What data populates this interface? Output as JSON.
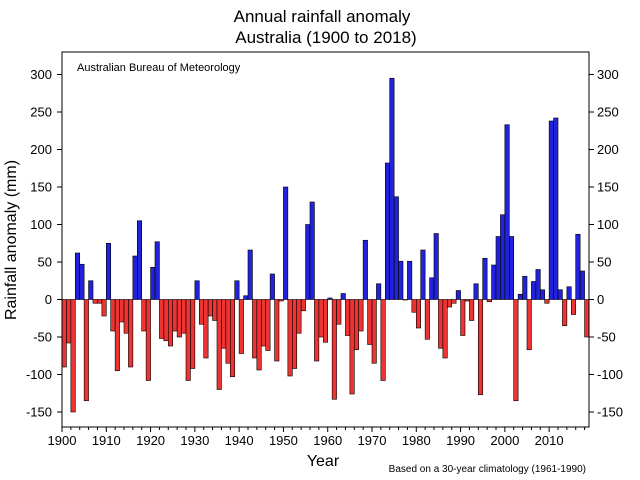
{
  "chart_data": {
    "type": "bar",
    "title": "Annual rainfall anomaly",
    "subtitle": "Australia (1900 to 2018)",
    "xlabel": "Year",
    "ylabel": "Rainfall anomaly (mm)",
    "annotation": "Australian Bureau of Meteorology",
    "footnote": "Based on a 30-year climatology (1961-1990)",
    "xlim": [
      1900,
      2018
    ],
    "ylim": [
      -170,
      330
    ],
    "xticks": [
      1900,
      1910,
      1920,
      1930,
      1940,
      1950,
      1960,
      1970,
      1980,
      1990,
      2000,
      2010
    ],
    "yticks": [
      -150,
      -100,
      -50,
      0,
      50,
      100,
      150,
      200,
      250,
      300
    ],
    "grid": false,
    "positive_color": "#2222dd",
    "negative_color": "#ee3333",
    "x": [
      1900,
      1901,
      1902,
      1903,
      1904,
      1905,
      1906,
      1907,
      1908,
      1909,
      1910,
      1911,
      1912,
      1913,
      1914,
      1915,
      1916,
      1917,
      1918,
      1919,
      1920,
      1921,
      1922,
      1923,
      1924,
      1925,
      1926,
      1927,
      1928,
      1929,
      1930,
      1931,
      1932,
      1933,
      1934,
      1935,
      1936,
      1937,
      1938,
      1939,
      1940,
      1941,
      1942,
      1943,
      1944,
      1945,
      1946,
      1947,
      1948,
      1949,
      1950,
      1951,
      1952,
      1953,
      1954,
      1955,
      1956,
      1957,
      1958,
      1959,
      1960,
      1961,
      1962,
      1963,
      1964,
      1965,
      1966,
      1967,
      1968,
      1969,
      1970,
      1971,
      1972,
      1973,
      1974,
      1975,
      1976,
      1977,
      1978,
      1979,
      1980,
      1981,
      1982,
      1983,
      1984,
      1985,
      1986,
      1987,
      1988,
      1989,
      1990,
      1991,
      1992,
      1993,
      1994,
      1995,
      1996,
      1997,
      1998,
      1999,
      2000,
      2001,
      2002,
      2003,
      2004,
      2005,
      2006,
      2007,
      2008,
      2009,
      2010,
      2011,
      2012,
      2013,
      2014,
      2015,
      2016,
      2017,
      2018
    ],
    "values": [
      -90,
      -58,
      -150,
      62,
      47,
      -135,
      25,
      -5,
      -5,
      -22,
      75,
      -42,
      -95,
      -30,
      -45,
      -90,
      58,
      105,
      -42,
      -108,
      43,
      77,
      -52,
      -55,
      -62,
      -42,
      -50,
      -45,
      -108,
      -92,
      25,
      -33,
      -78,
      -22,
      -28,
      -120,
      -65,
      -85,
      -103,
      25,
      -72,
      5,
      66,
      -78,
      -94,
      -62,
      -68,
      34,
      -82,
      -2,
      150,
      -102,
      -92,
      -45,
      -15,
      100,
      130,
      -82,
      -50,
      -57,
      2,
      -133,
      -33,
      8,
      -48,
      -126,
      -67,
      -42,
      79,
      -60,
      -85,
      21,
      -108,
      182,
      295,
      137,
      51,
      0,
      51,
      -17,
      -38,
      66,
      -53,
      29,
      88,
      -65,
      -78,
      -10,
      -5,
      12,
      -48,
      -2,
      -28,
      21,
      -127,
      55,
      -3,
      46,
      84,
      113,
      233,
      84,
      -135,
      7,
      31,
      -67,
      24,
      40,
      13,
      -5,
      238,
      242,
      13,
      -35,
      17,
      -20,
      87,
      38,
      -50
    ]
  }
}
